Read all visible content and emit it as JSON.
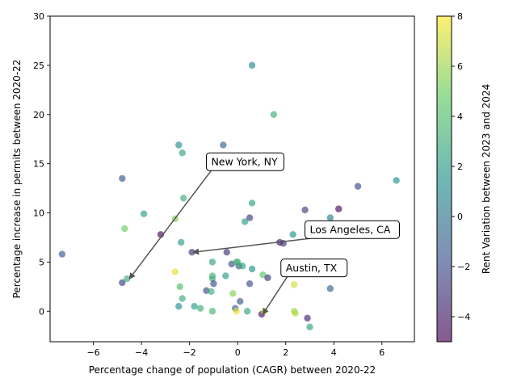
{
  "chart_data": {
    "type": "scatter",
    "title": "",
    "xlabel": "Percentage change of population (CAGR) between 2020-22",
    "ylabel": "Percentage increase in permits between 2020-22",
    "xlim": [
      -7.8,
      7.35
    ],
    "ylim": [
      -3.1,
      30
    ],
    "xticks": [
      -6,
      -4,
      -2,
      0,
      2,
      4,
      6
    ],
    "xtick_labels": [
      "−6",
      "−4",
      "−2",
      "0",
      "2",
      "4",
      "6"
    ],
    "yticks": [
      0,
      5,
      10,
      15,
      20,
      25,
      30
    ],
    "ytick_labels": [
      "0",
      "5",
      "10",
      "15",
      "20",
      "25",
      "30"
    ],
    "grid": false,
    "colorbar": {
      "label": "Rent Variation between 2023 and 2024",
      "range": [
        -5,
        8
      ],
      "ticks": [
        -4,
        -2,
        0,
        2,
        4,
        6,
        8
      ],
      "tick_labels": [
        "−4",
        "−2",
        "0",
        "2",
        "4",
        "6",
        "8"
      ],
      "colormap": "viridis",
      "colors": [
        "#440154",
        "#3b528b",
        "#21918c",
        "#5ec962",
        "#fde725"
      ]
    },
    "points": [
      {
        "x": -7.3,
        "y": 5.8,
        "c": -1.5
      },
      {
        "x": -4.8,
        "y": 13.5,
        "c": -1.5
      },
      {
        "x": -4.8,
        "y": 2.9,
        "c": -2.5
      },
      {
        "x": -4.7,
        "y": 8.4,
        "c": 5.0
      },
      {
        "x": -4.6,
        "y": 3.3,
        "c": 3.0
      },
      {
        "x": -3.9,
        "y": 9.9,
        "c": 2.0
      },
      {
        "x": -3.2,
        "y": 7.8,
        "c": -4.5
      },
      {
        "x": -2.6,
        "y": 9.4,
        "c": 5.5
      },
      {
        "x": -2.6,
        "y": 4.0,
        "c": 7.5
      },
      {
        "x": -2.45,
        "y": 16.9,
        "c": 1.5
      },
      {
        "x": -2.35,
        "y": 7.0,
        "c": 2.0
      },
      {
        "x": -2.3,
        "y": 16.1,
        "c": 2.5
      },
      {
        "x": -2.25,
        "y": 11.5,
        "c": 3.0
      },
      {
        "x": -2.4,
        "y": 2.5,
        "c": 4.0
      },
      {
        "x": -2.3,
        "y": 1.3,
        "c": 3.0
      },
      {
        "x": -2.45,
        "y": 0.5,
        "c": 1.5
      },
      {
        "x": -1.9,
        "y": 6.0,
        "c": -3.0
      },
      {
        "x": -1.8,
        "y": 0.5,
        "c": 2.0
      },
      {
        "x": -1.55,
        "y": 0.3,
        "c": 3.0
      },
      {
        "x": -1.3,
        "y": 2.1,
        "c": -2.0
      },
      {
        "x": -1.1,
        "y": 2.0,
        "c": 3.0
      },
      {
        "x": -1.05,
        "y": 3.6,
        "c": 3.5
      },
      {
        "x": -1.05,
        "y": 3.3,
        "c": 3.0
      },
      {
        "x": -1.0,
        "y": 2.8,
        "c": -2.0
      },
      {
        "x": -1.05,
        "y": 5.0,
        "c": 2.5
      },
      {
        "x": -1.05,
        "y": 0.0,
        "c": 3.5
      },
      {
        "x": -0.6,
        "y": 16.9,
        "c": -1.0
      },
      {
        "x": -0.5,
        "y": 3.6,
        "c": 2.0
      },
      {
        "x": -0.45,
        "y": 6.0,
        "c": -3.0
      },
      {
        "x": -0.25,
        "y": 4.8,
        "c": -2.0
      },
      {
        "x": -0.2,
        "y": 1.8,
        "c": 5.5
      },
      {
        "x": -0.1,
        "y": 0.3,
        "c": -1.0
      },
      {
        "x": -0.05,
        "y": 0.0,
        "c": 7.5
      },
      {
        "x": -0.05,
        "y": 5.0,
        "c": 3.5
      },
      {
        "x": 0.05,
        "y": 4.6,
        "c": -1.0
      },
      {
        "x": 0.0,
        "y": 5.0,
        "c": 3.5
      },
      {
        "x": 0.1,
        "y": 1.0,
        "c": -1.5
      },
      {
        "x": 0.2,
        "y": 4.6,
        "c": 2.5
      },
      {
        "x": 0.3,
        "y": 9.1,
        "c": 2.0
      },
      {
        "x": 0.4,
        "y": 0.0,
        "c": 2.5
      },
      {
        "x": 0.5,
        "y": 2.8,
        "c": -2.0
      },
      {
        "x": 0.5,
        "y": 9.5,
        "c": -2.5
      },
      {
        "x": 0.6,
        "y": 25.0,
        "c": 1.0
      },
      {
        "x": 0.6,
        "y": 11.0,
        "c": 2.5
      },
      {
        "x": 0.6,
        "y": 4.3,
        "c": 1.5
      },
      {
        "x": 1.0,
        "y": -0.3,
        "c": -4.5
      },
      {
        "x": 1.1,
        "y": 0.0,
        "c": 7.0
      },
      {
        "x": 1.05,
        "y": 3.7,
        "c": 4.5
      },
      {
        "x": 1.25,
        "y": 3.4,
        "c": -3.0
      },
      {
        "x": 1.5,
        "y": 20.0,
        "c": 3.0
      },
      {
        "x": 1.75,
        "y": 7.0,
        "c": -4.0
      },
      {
        "x": 1.9,
        "y": 6.9,
        "c": -3.0
      },
      {
        "x": 2.3,
        "y": 7.8,
        "c": 1.5
      },
      {
        "x": 2.35,
        "y": 2.7,
        "c": 7.0
      },
      {
        "x": 2.35,
        "y": 0.0,
        "c": 6.0
      },
      {
        "x": 2.4,
        "y": -0.2,
        "c": 6.5
      },
      {
        "x": 2.8,
        "y": 10.3,
        "c": -2.5
      },
      {
        "x": 2.9,
        "y": -0.7,
        "c": -3.5
      },
      {
        "x": 3.0,
        "y": -1.6,
        "c": 2.5
      },
      {
        "x": 3.85,
        "y": 9.5,
        "c": 0.5
      },
      {
        "x": 3.85,
        "y": 2.3,
        "c": -1.0
      },
      {
        "x": 4.2,
        "y": 10.4,
        "c": -4.5
      },
      {
        "x": 5.0,
        "y": 12.7,
        "c": -2.0
      },
      {
        "x": 6.6,
        "y": 13.3,
        "c": 1.5
      }
    ],
    "annotations": [
      {
        "text": "New York, NY",
        "target": [
          -4.5,
          3.3
        ],
        "label_at": [
          -1.1,
          15.2
        ]
      },
      {
        "text": "Los Angeles, CA",
        "target": [
          -1.85,
          6.0
        ],
        "label_at": [
          3.0,
          8.3
        ]
      },
      {
        "text": "Austin, TX",
        "target": [
          1.05,
          -0.3
        ],
        "label_at": [
          2.0,
          4.4
        ]
      }
    ]
  }
}
